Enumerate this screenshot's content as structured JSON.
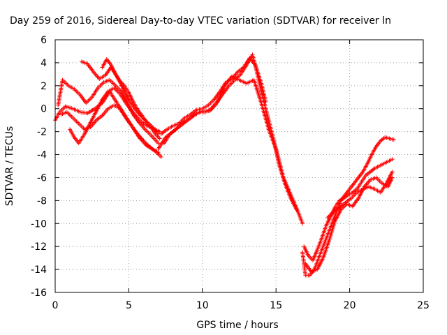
{
  "chart_data": {
    "type": "scatter",
    "title": "Day 259 of 2016, Sidereal Day-to-day VTEC variation (SDTVAR) for receiver ln",
    "xlabel": "GPS time / hours",
    "ylabel": "SDTVAR / TECUs",
    "xlim": [
      0,
      25
    ],
    "ylim": [
      -16,
      6
    ],
    "xticks": [
      "0",
      "5",
      "10",
      "15",
      "20",
      "25"
    ],
    "yticks": [
      "6",
      "4",
      "2",
      "0",
      "-2",
      "-4",
      "-6",
      "-8",
      "-10",
      "-12",
      "-14",
      "-16"
    ],
    "grid": true,
    "marker": "plus",
    "color": "#ff0000",
    "series": [
      {
        "x": [
          0.0,
          0.3,
          0.7,
          1.2,
          1.7,
          2.2,
          2.7,
          3.2,
          3.7,
          4.2,
          4.7,
          5.2,
          5.7,
          6.2,
          6.7,
          7.0
        ],
        "y": [
          -1.0,
          -0.3,
          0.2,
          0.0,
          -0.3,
          -0.4,
          0.0,
          0.5,
          1.5,
          0.5,
          -0.5,
          -1.5,
          -2.5,
          -3.2,
          -3.6,
          -3.8
        ]
      },
      {
        "x": [
          0.2,
          0.5,
          0.9,
          1.3,
          1.7,
          2.1,
          2.5,
          2.9,
          3.3,
          3.7,
          4.1,
          4.5,
          4.9,
          5.3,
          5.7,
          6.1,
          6.5,
          7.0
        ],
        "y": [
          0.3,
          2.5,
          2.0,
          1.7,
          1.2,
          0.5,
          1.0,
          1.8,
          2.3,
          2.5,
          2.0,
          1.5,
          0.5,
          -0.5,
          -1.2,
          -1.8,
          -2.3,
          -3.0
        ]
      },
      {
        "x": [
          0.4,
          0.8,
          1.2,
          1.6,
          2.0,
          2.4,
          2.8,
          3.2,
          3.6,
          4.0,
          4.4,
          4.8,
          5.2,
          5.6,
          6.0,
          6.4,
          6.8,
          7.2
        ],
        "y": [
          -0.5,
          -0.3,
          -0.8,
          -1.3,
          -1.8,
          -1.6,
          -1.0,
          -0.6,
          0.0,
          0.3,
          0.0,
          -0.8,
          -1.5,
          -2.2,
          -2.8,
          -3.3,
          -3.7,
          -4.2
        ]
      },
      {
        "x": [
          1.0,
          1.3,
          1.6,
          2.0,
          2.4,
          2.8,
          3.2,
          3.6,
          4.0,
          4.4,
          4.8,
          5.2,
          5.6,
          6.0,
          6.4,
          6.8,
          7.1
        ],
        "y": [
          -1.8,
          -2.5,
          -3.0,
          -2.2,
          -1.2,
          -0.2,
          0.8,
          1.5,
          1.8,
          1.3,
          0.5,
          -0.2,
          -0.8,
          -1.3,
          -1.6,
          -1.8,
          -2.0
        ]
      },
      {
        "x": [
          1.8,
          2.2,
          2.6,
          3.0,
          3.4,
          3.8,
          4.2,
          4.6,
          5.0,
          5.4,
          5.8,
          6.2,
          6.6,
          7.0
        ],
        "y": [
          4.1,
          3.9,
          3.2,
          2.6,
          2.9,
          3.6,
          2.8,
          1.8,
          0.8,
          0.0,
          -0.6,
          -1.1,
          -1.6,
          -2.2
        ]
      },
      {
        "x": [
          3.2,
          3.5,
          3.8,
          4.1,
          4.4,
          4.7,
          5.0,
          5.3,
          5.6,
          5.9,
          6.2,
          6.5,
          6.8,
          7.1
        ],
        "y": [
          3.6,
          4.3,
          3.8,
          3.0,
          2.4,
          2.0,
          1.4,
          0.6,
          -0.1,
          -0.6,
          -1.2,
          -1.6,
          -2.2,
          -2.6
        ]
      },
      {
        "x": [
          7.0,
          7.5,
          8.0,
          8.5,
          9.0,
          9.5,
          10.0,
          10.5,
          11.0,
          11.5,
          12.0,
          12.5,
          13.0,
          13.5,
          14.0,
          14.5,
          15.0,
          15.5,
          16.0,
          16.5,
          16.8
        ],
        "y": [
          -3.5,
          -2.5,
          -2.0,
          -1.5,
          -1.0,
          -0.5,
          -0.2,
          -0.2,
          0.5,
          2.0,
          2.8,
          2.5,
          2.2,
          2.5,
          0.5,
          -1.8,
          -3.5,
          -6.0,
          -7.5,
          -9.0,
          -10.0
        ]
      },
      {
        "x": [
          7.2,
          7.6,
          8.0,
          8.4,
          8.8,
          9.2,
          9.6,
          10.0,
          10.4,
          10.8,
          11.2,
          11.6,
          12.0,
          12.4,
          12.8,
          13.2,
          13.6,
          14.0,
          14.3
        ],
        "y": [
          -2.2,
          -1.8,
          -1.5,
          -1.3,
          -0.8,
          -0.5,
          -0.1,
          0.0,
          0.3,
          0.8,
          1.5,
          2.3,
          2.6,
          3.2,
          3.6,
          4.4,
          3.8,
          2.2,
          0.6
        ]
      },
      {
        "x": [
          7.4,
          7.8,
          8.2,
          8.6,
          9.0,
          9.4,
          9.8,
          10.2,
          10.6,
          11.0,
          11.4,
          11.8,
          12.2,
          12.6,
          13.0,
          13.4,
          13.7,
          14.0,
          14.4,
          14.8,
          15.2,
          15.6,
          16.0,
          16.4
        ],
        "y": [
          -3.0,
          -2.2,
          -1.8,
          -1.3,
          -1.0,
          -0.6,
          -0.3,
          -0.3,
          0.0,
          0.6,
          1.3,
          2.0,
          2.5,
          3.0,
          3.8,
          4.7,
          3.2,
          1.5,
          -0.5,
          -2.5,
          -4.8,
          -6.5,
          -7.8,
          -8.8
        ]
      },
      {
        "x": [
          16.8,
          17.0,
          17.3,
          17.6,
          17.9,
          18.2,
          18.5,
          18.8,
          19.1,
          19.4,
          19.7,
          20.0,
          20.3,
          20.6,
          20.9,
          21.2,
          21.5,
          21.8,
          22.1,
          22.4,
          22.7,
          23.0
        ],
        "y": [
          -12.5,
          -14.5,
          -14.5,
          -14.0,
          -13.0,
          -12.0,
          -11.0,
          -10.0,
          -9.0,
          -8.0,
          -7.5,
          -7.0,
          -6.5,
          -6.0,
          -5.5,
          -4.8,
          -4.0,
          -3.3,
          -2.8,
          -2.5,
          -2.6,
          -2.7
        ]
      },
      {
        "x": [
          16.9,
          17.2,
          17.5,
          17.8,
          18.1,
          18.4,
          18.7,
          19.0,
          19.3,
          19.6,
          19.9,
          20.2,
          20.5,
          20.8,
          21.1,
          21.4,
          21.7,
          22.0,
          22.3,
          22.6,
          22.9
        ],
        "y": [
          -12.0,
          -12.8,
          -13.2,
          -12.3,
          -11.3,
          -10.2,
          -9.4,
          -8.6,
          -8.0,
          -7.8,
          -7.5,
          -7.3,
          -7.0,
          -6.4,
          -5.8,
          -5.5,
          -5.2,
          -5.0,
          -4.8,
          -4.6,
          -4.4
        ]
      },
      {
        "x": [
          17.0,
          17.4,
          17.8,
          18.2,
          18.6,
          19.0,
          19.4,
          19.8,
          20.2,
          20.6,
          21.0,
          21.4,
          21.8,
          22.2,
          22.6,
          22.9
        ],
        "y": [
          -13.5,
          -14.2,
          -14.0,
          -13.0,
          -11.5,
          -9.8,
          -8.8,
          -8.3,
          -8.5,
          -7.8,
          -6.8,
          -6.2,
          -6.0,
          -6.5,
          -6.8,
          -6.0
        ]
      },
      {
        "x": [
          18.5,
          18.9,
          19.3,
          19.7,
          20.1,
          20.5,
          20.9,
          21.3,
          21.7,
          22.1,
          22.5,
          22.9
        ],
        "y": [
          -9.5,
          -9.0,
          -8.6,
          -8.2,
          -7.8,
          -7.3,
          -7.0,
          -6.8,
          -7.0,
          -7.3,
          -6.5,
          -5.5
        ]
      }
    ]
  }
}
